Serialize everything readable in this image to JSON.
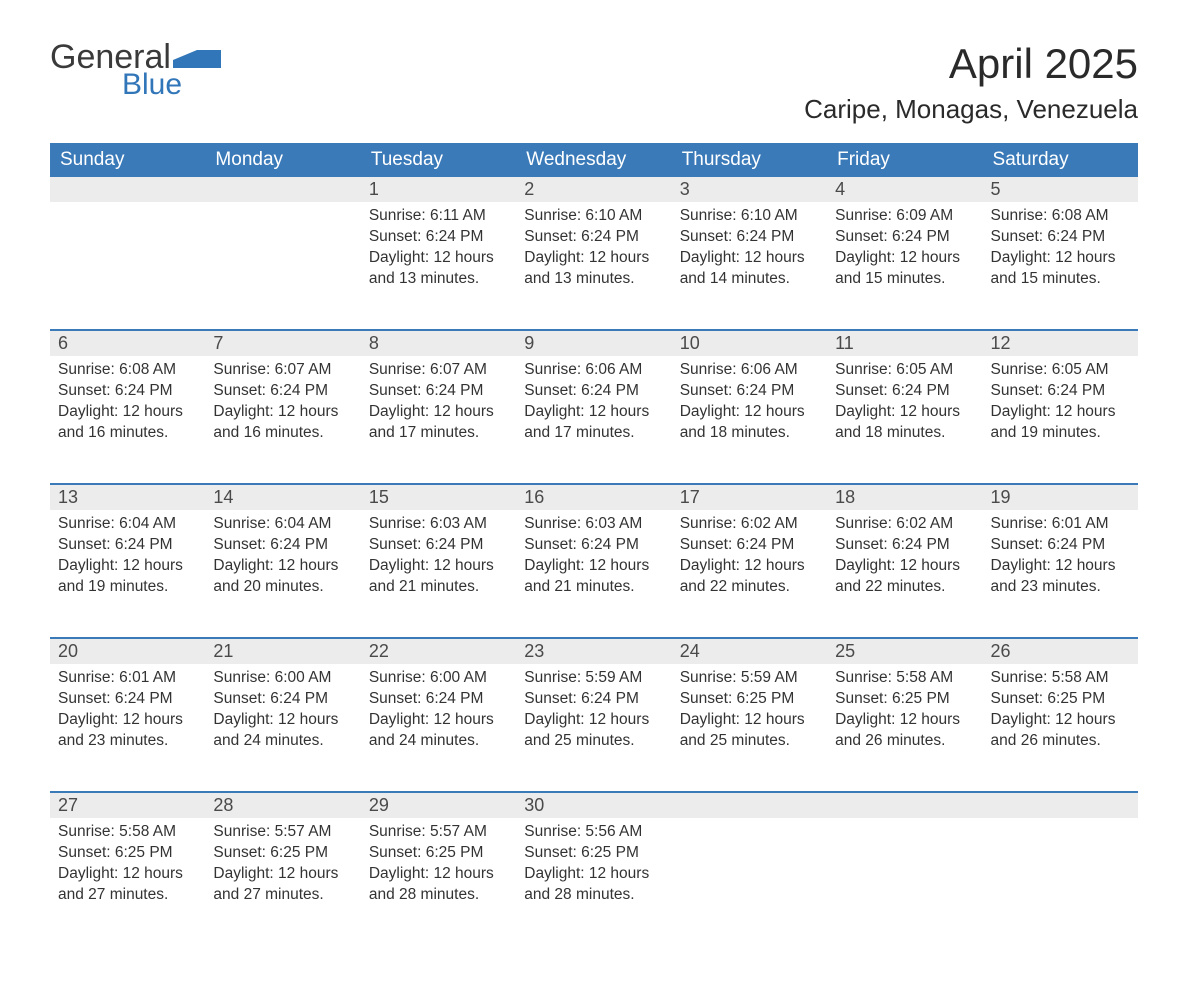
{
  "brand": {
    "word1": "General",
    "word2": "Blue",
    "logo_color": "#3176b8"
  },
  "title": "April 2025",
  "location": "Caripe, Monagas, Venezuela",
  "colors": {
    "header_bg": "#3a7ab8",
    "header_text": "#ffffff",
    "daynum_bg": "#ececec",
    "row_divider": "#3a7ab8",
    "body_text": "#333333",
    "page_bg": "#ffffff"
  },
  "fonts": {
    "title_size_pt": 32,
    "location_size_pt": 20,
    "header_size_pt": 14,
    "cell_size_pt": 12
  },
  "weekdays": [
    "Sunday",
    "Monday",
    "Tuesday",
    "Wednesday",
    "Thursday",
    "Friday",
    "Saturday"
  ],
  "weeks": [
    [
      null,
      null,
      {
        "day": "1",
        "sunrise": "Sunrise: 6:11 AM",
        "sunset": "Sunset: 6:24 PM",
        "daylight": "Daylight: 12 hours and 13 minutes."
      },
      {
        "day": "2",
        "sunrise": "Sunrise: 6:10 AM",
        "sunset": "Sunset: 6:24 PM",
        "daylight": "Daylight: 12 hours and 13 minutes."
      },
      {
        "day": "3",
        "sunrise": "Sunrise: 6:10 AM",
        "sunset": "Sunset: 6:24 PM",
        "daylight": "Daylight: 12 hours and 14 minutes."
      },
      {
        "day": "4",
        "sunrise": "Sunrise: 6:09 AM",
        "sunset": "Sunset: 6:24 PM",
        "daylight": "Daylight: 12 hours and 15 minutes."
      },
      {
        "day": "5",
        "sunrise": "Sunrise: 6:08 AM",
        "sunset": "Sunset: 6:24 PM",
        "daylight": "Daylight: 12 hours and 15 minutes."
      }
    ],
    [
      {
        "day": "6",
        "sunrise": "Sunrise: 6:08 AM",
        "sunset": "Sunset: 6:24 PM",
        "daylight": "Daylight: 12 hours and 16 minutes."
      },
      {
        "day": "7",
        "sunrise": "Sunrise: 6:07 AM",
        "sunset": "Sunset: 6:24 PM",
        "daylight": "Daylight: 12 hours and 16 minutes."
      },
      {
        "day": "8",
        "sunrise": "Sunrise: 6:07 AM",
        "sunset": "Sunset: 6:24 PM",
        "daylight": "Daylight: 12 hours and 17 minutes."
      },
      {
        "day": "9",
        "sunrise": "Sunrise: 6:06 AM",
        "sunset": "Sunset: 6:24 PM",
        "daylight": "Daylight: 12 hours and 17 minutes."
      },
      {
        "day": "10",
        "sunrise": "Sunrise: 6:06 AM",
        "sunset": "Sunset: 6:24 PM",
        "daylight": "Daylight: 12 hours and 18 minutes."
      },
      {
        "day": "11",
        "sunrise": "Sunrise: 6:05 AM",
        "sunset": "Sunset: 6:24 PM",
        "daylight": "Daylight: 12 hours and 18 minutes."
      },
      {
        "day": "12",
        "sunrise": "Sunrise: 6:05 AM",
        "sunset": "Sunset: 6:24 PM",
        "daylight": "Daylight: 12 hours and 19 minutes."
      }
    ],
    [
      {
        "day": "13",
        "sunrise": "Sunrise: 6:04 AM",
        "sunset": "Sunset: 6:24 PM",
        "daylight": "Daylight: 12 hours and 19 minutes."
      },
      {
        "day": "14",
        "sunrise": "Sunrise: 6:04 AM",
        "sunset": "Sunset: 6:24 PM",
        "daylight": "Daylight: 12 hours and 20 minutes."
      },
      {
        "day": "15",
        "sunrise": "Sunrise: 6:03 AM",
        "sunset": "Sunset: 6:24 PM",
        "daylight": "Daylight: 12 hours and 21 minutes."
      },
      {
        "day": "16",
        "sunrise": "Sunrise: 6:03 AM",
        "sunset": "Sunset: 6:24 PM",
        "daylight": "Daylight: 12 hours and 21 minutes."
      },
      {
        "day": "17",
        "sunrise": "Sunrise: 6:02 AM",
        "sunset": "Sunset: 6:24 PM",
        "daylight": "Daylight: 12 hours and 22 minutes."
      },
      {
        "day": "18",
        "sunrise": "Sunrise: 6:02 AM",
        "sunset": "Sunset: 6:24 PM",
        "daylight": "Daylight: 12 hours and 22 minutes."
      },
      {
        "day": "19",
        "sunrise": "Sunrise: 6:01 AM",
        "sunset": "Sunset: 6:24 PM",
        "daylight": "Daylight: 12 hours and 23 minutes."
      }
    ],
    [
      {
        "day": "20",
        "sunrise": "Sunrise: 6:01 AM",
        "sunset": "Sunset: 6:24 PM",
        "daylight": "Daylight: 12 hours and 23 minutes."
      },
      {
        "day": "21",
        "sunrise": "Sunrise: 6:00 AM",
        "sunset": "Sunset: 6:24 PM",
        "daylight": "Daylight: 12 hours and 24 minutes."
      },
      {
        "day": "22",
        "sunrise": "Sunrise: 6:00 AM",
        "sunset": "Sunset: 6:24 PM",
        "daylight": "Daylight: 12 hours and 24 minutes."
      },
      {
        "day": "23",
        "sunrise": "Sunrise: 5:59 AM",
        "sunset": "Sunset: 6:24 PM",
        "daylight": "Daylight: 12 hours and 25 minutes."
      },
      {
        "day": "24",
        "sunrise": "Sunrise: 5:59 AM",
        "sunset": "Sunset: 6:25 PM",
        "daylight": "Daylight: 12 hours and 25 minutes."
      },
      {
        "day": "25",
        "sunrise": "Sunrise: 5:58 AM",
        "sunset": "Sunset: 6:25 PM",
        "daylight": "Daylight: 12 hours and 26 minutes."
      },
      {
        "day": "26",
        "sunrise": "Sunrise: 5:58 AM",
        "sunset": "Sunset: 6:25 PM",
        "daylight": "Daylight: 12 hours and 26 minutes."
      }
    ],
    [
      {
        "day": "27",
        "sunrise": "Sunrise: 5:58 AM",
        "sunset": "Sunset: 6:25 PM",
        "daylight": "Daylight: 12 hours and 27 minutes."
      },
      {
        "day": "28",
        "sunrise": "Sunrise: 5:57 AM",
        "sunset": "Sunset: 6:25 PM",
        "daylight": "Daylight: 12 hours and 27 minutes."
      },
      {
        "day": "29",
        "sunrise": "Sunrise: 5:57 AM",
        "sunset": "Sunset: 6:25 PM",
        "daylight": "Daylight: 12 hours and 28 minutes."
      },
      {
        "day": "30",
        "sunrise": "Sunrise: 5:56 AM",
        "sunset": "Sunset: 6:25 PM",
        "daylight": "Daylight: 12 hours and 28 minutes."
      },
      null,
      null,
      null
    ]
  ]
}
